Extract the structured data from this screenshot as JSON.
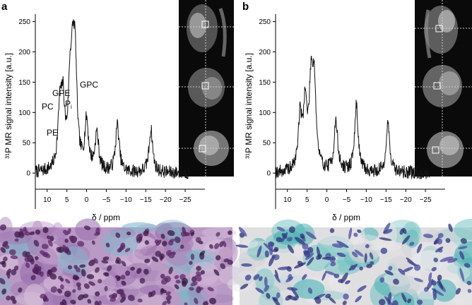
{
  "chart_data": [
    {
      "type": "line",
      "panel": "a",
      "ylabel": "³¹P MR signal intensity [a.u.]",
      "xlabel": "δ / ppm",
      "xlim": [
        13,
        -30
      ],
      "ylim": [
        -15,
        260
      ],
      "x_ticks": [
        10,
        5,
        0,
        -5,
        -10,
        -15,
        -20,
        -25
      ],
      "y_ticks": [
        0,
        50,
        100,
        150,
        200,
        250
      ],
      "peaks": [
        {
          "x": 6.8,
          "y": 92,
          "label": "PE"
        },
        {
          "x": 6.0,
          "y": 100,
          "label": "PC"
        },
        {
          "x": 4.2,
          "y": 115,
          "label": "Pi"
        },
        {
          "x": 3.5,
          "y": 125,
          "label": "GPE"
        },
        {
          "x": 2.9,
          "y": 150,
          "label": "GPC"
        },
        {
          "x": 0.0,
          "y": 80,
          "label": ""
        },
        {
          "x": -2.6,
          "y": 62,
          "label": ""
        },
        {
          "x": -7.8,
          "y": 78,
          "label": ""
        },
        {
          "x": -16.3,
          "y": 72,
          "label": ""
        }
      ],
      "annotations": [
        "PE",
        "PC",
        "P",
        "i",
        "GPE",
        "GPC"
      ]
    },
    {
      "type": "line",
      "panel": "b",
      "ylabel": "³¹P MR signal intensity [a.u.]",
      "xlabel": "δ / ppm",
      "xlim": [
        13,
        -30
      ],
      "ylim": [
        -15,
        260
      ],
      "x_ticks": [
        10,
        5,
        0,
        -5,
        -10,
        -15,
        -20,
        -25
      ],
      "y_ticks": [
        0,
        50,
        100,
        150,
        200,
        250
      ],
      "peaks": [
        {
          "x": 6.8,
          "y": 85,
          "label": ""
        },
        {
          "x": 5.5,
          "y": 105,
          "label": ""
        },
        {
          "x": 4.0,
          "y": 130,
          "label": ""
        },
        {
          "x": 3.2,
          "y": 132,
          "label": ""
        },
        {
          "x": -2.3,
          "y": 82,
          "label": ""
        },
        {
          "x": -7.5,
          "y": 110,
          "label": ""
        },
        {
          "x": -15.5,
          "y": 80,
          "label": ""
        }
      ]
    }
  ],
  "colors": {
    "mri_background": "#0a0a0a",
    "stain_a_base": "#b89ac4",
    "stain_a_nuclei": "#4a1f55",
    "stain_b_base": "#dfdfe2",
    "stain_b_blue": "#49b2b4",
    "stain_b_nuclei": "#3a3d8e"
  }
}
